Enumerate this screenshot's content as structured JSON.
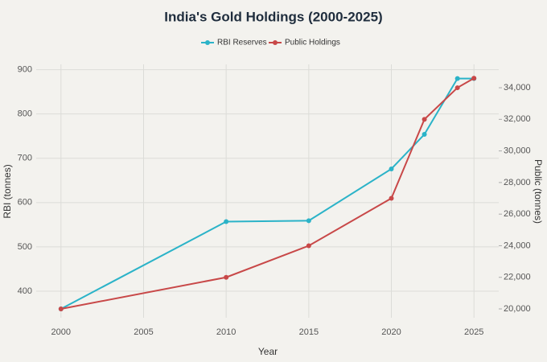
{
  "chart_data": {
    "type": "line",
    "title": "India's Gold Holdings (2000-2025)",
    "x_label": "Year",
    "y_label": "RBI (tonnes)",
    "y2_label": "Public (tonnes)",
    "x": [
      2000,
      2010,
      2015,
      2020,
      2022,
      2024,
      2025
    ],
    "series": [
      {
        "name": "RBI Reserves",
        "color": "#2bb3c8",
        "values": [
          360,
          557,
          559,
          676,
          754,
          880,
          880
        ]
      },
      {
        "name": "Public Holdings",
        "color": "#c84848",
        "axis": "y2",
        "values": [
          20000,
          22000,
          24000,
          27000,
          32000,
          34000,
          34600
        ]
      }
    ],
    "xlim": [
      1998.5,
      2026.5
    ],
    "xticks": [
      2000,
      2005,
      2010,
      2015,
      2020,
      2025
    ],
    "ylim": [
      340,
      912
    ],
    "yticks": [
      400,
      500,
      600,
      700,
      800,
      900
    ],
    "y2lim": [
      19440,
      35480
    ],
    "y2ticks": [
      {
        "value": 20000,
        "label": "20,000"
      },
      {
        "value": 22000,
        "label": "22,000"
      },
      {
        "value": 24000,
        "label": "24,000"
      },
      {
        "value": 26000,
        "label": "26,000"
      },
      {
        "value": 28000,
        "label": "28,000"
      },
      {
        "value": 30000,
        "label": "30,000"
      },
      {
        "value": 32000,
        "label": "32,000"
      },
      {
        "value": 34000,
        "label": "34,000"
      }
    ],
    "grid": true,
    "legend": "top"
  }
}
